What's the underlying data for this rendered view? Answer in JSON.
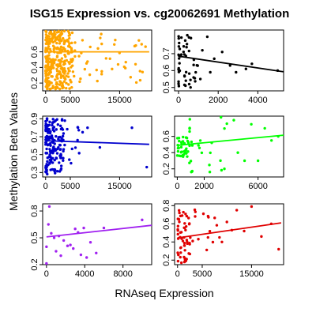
{
  "chart_data": {
    "type": "scatter",
    "title": "ISG15 Expression vs. cg20062691 Methylation",
    "xlabel": "RNAseq Expression",
    "ylabel": "Methylation Beta Values",
    "panels": [
      {
        "color": "#FFA500",
        "xlim": [
          -600,
          21500
        ],
        "ylim": [
          0.1,
          0.88
        ],
        "xticks": [
          0,
          5000,
          15000
        ],
        "yticks": [
          0.2,
          0.4,
          0.6
        ],
        "fit": [
          [
            0,
            0.6
          ],
          [
            21000,
            0.6
          ]
        ],
        "clusters": [
          {
            "n": 320,
            "xr": [
              0,
              5500
            ],
            "yr": [
              0.12,
              0.87
            ]
          },
          {
            "n": 45,
            "xr": [
              5500,
              21000
            ],
            "yr": [
              0.2,
              0.85
            ]
          }
        ],
        "points": []
      },
      {
        "color": "#000000",
        "xlim": [
          -200,
          5300
        ],
        "ylim": [
          0.48,
          0.84
        ],
        "xticks": [
          0,
          2000,
          4000
        ],
        "yticks": [
          0.5,
          0.6,
          0.7
        ],
        "fit": [
          [
            0,
            0.685
          ],
          [
            5300,
            0.593
          ]
        ],
        "clusters": [
          {
            "n": 48,
            "xr": [
              0,
              1000
            ],
            "yr": [
              0.5,
              0.83
            ]
          }
        ],
        "points": [
          [
            1100,
            0.55
          ],
          [
            1200,
            0.72
          ],
          [
            1450,
            0.8
          ],
          [
            1600,
            0.59
          ],
          [
            1800,
            0.67
          ],
          [
            2200,
            0.71
          ],
          [
            2600,
            0.63
          ],
          [
            2900,
            0.59
          ],
          [
            3400,
            0.61
          ],
          [
            3700,
            0.64
          ],
          [
            5000,
            0.6
          ]
        ]
      },
      {
        "color": "#0000CD",
        "xlim": [
          -600,
          21500
        ],
        "ylim": [
          0.25,
          0.93
        ],
        "xticks": [
          0,
          5000,
          15000
        ],
        "yticks": [
          0.3,
          0.5,
          0.7,
          0.9
        ],
        "fit": [
          [
            0,
            0.655
          ],
          [
            21000,
            0.615
          ]
        ],
        "clusters": [
          {
            "n": 150,
            "xr": [
              0,
              3500
            ],
            "yr": [
              0.28,
              0.92
            ]
          },
          {
            "n": 20,
            "xr": [
              3500,
              7000
            ],
            "yr": [
              0.4,
              0.9
            ]
          }
        ],
        "points": [
          [
            7500,
            0.75
          ],
          [
            8500,
            0.8
          ],
          [
            11000,
            0.58
          ],
          [
            17500,
            0.8
          ],
          [
            20500,
            0.36
          ]
        ]
      },
      {
        "color": "#00FF00",
        "xlim": [
          -200,
          7900
        ],
        "ylim": [
          0.1,
          0.85
        ],
        "xticks": [
          0,
          2000,
          6000
        ],
        "yticks": [
          0.2,
          0.4,
          0.6
        ],
        "fit": [
          [
            0,
            0.49
          ],
          [
            7900,
            0.615
          ]
        ],
        "clusters": [
          {
            "n": 35,
            "xr": [
              0,
              900
            ],
            "yr": [
              0.35,
              0.6
            ]
          },
          {
            "n": 25,
            "xr": [
              900,
              4000
            ],
            "yr": [
              0.15,
              0.85
            ]
          }
        ],
        "points": [
          [
            4200,
            0.8
          ],
          [
            4500,
            0.4
          ],
          [
            5000,
            0.3
          ],
          [
            5500,
            0.75
          ],
          [
            6000,
            0.3
          ],
          [
            6500,
            0.7
          ],
          [
            7000,
            0.55
          ],
          [
            7500,
            0.6
          ],
          [
            3500,
            0.2
          ]
        ]
      },
      {
        "color": "#A020F0",
        "xlim": [
          -400,
          11000
        ],
        "ylim": [
          0.2,
          0.88
        ],
        "xticks": [
          0,
          4000,
          8000
        ],
        "yticks": [
          0.2,
          0.5,
          0.8
        ],
        "fit": [
          [
            0,
            0.51
          ],
          [
            11000,
            0.64
          ]
        ],
        "clusters": [],
        "points": [
          [
            0,
            0.2
          ],
          [
            0,
            0.4
          ],
          [
            200,
            0.65
          ],
          [
            300,
            0.85
          ],
          [
            500,
            0.55
          ],
          [
            800,
            0.5
          ],
          [
            1000,
            0.35
          ],
          [
            1300,
            0.52
          ],
          [
            1500,
            0.3
          ],
          [
            1800,
            0.47
          ],
          [
            2200,
            0.41
          ],
          [
            2500,
            0.42
          ],
          [
            2800,
            0.38
          ],
          [
            3000,
            0.6
          ],
          [
            3300,
            0.56
          ],
          [
            3600,
            0.31
          ],
          [
            3900,
            0.61
          ],
          [
            4200,
            0.28
          ],
          [
            4600,
            0.45
          ],
          [
            5200,
            0.33
          ],
          [
            6000,
            0.61
          ],
          [
            10000,
            0.7
          ]
        ]
      },
      {
        "color": "#E00000",
        "xlim": [
          -600,
          21500
        ],
        "ylim": [
          0.15,
          0.82
        ],
        "xticks": [
          0,
          5000,
          15000
        ],
        "yticks": [
          0.2,
          0.4,
          0.6,
          0.8
        ],
        "fit": [
          [
            0,
            0.445
          ],
          [
            21000,
            0.61
          ]
        ],
        "clusters": [
          {
            "n": 55,
            "xr": [
              0,
              2500
            ],
            "yr": [
              0.17,
              0.75
            ]
          },
          {
            "n": 15,
            "xr": [
              2500,
              8000
            ],
            "yr": [
              0.3,
              0.8
            ]
          }
        ],
        "points": [
          [
            8500,
            0.45
          ],
          [
            9000,
            0.4
          ],
          [
            10000,
            0.62
          ],
          [
            11000,
            0.53
          ],
          [
            12000,
            0.75
          ],
          [
            13500,
            0.52
          ],
          [
            15000,
            0.79
          ],
          [
            17000,
            0.46
          ],
          [
            19000,
            0.6
          ],
          [
            20500,
            0.32
          ]
        ]
      }
    ]
  }
}
